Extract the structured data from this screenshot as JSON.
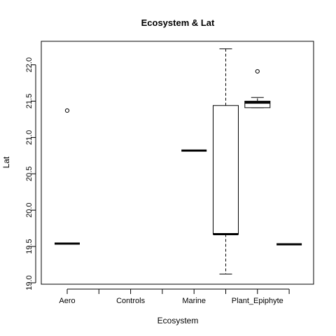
{
  "chart_data": {
    "type": "box",
    "title": "Ecosystem & Lat",
    "xlabel": "Ecosystem",
    "ylabel": "Lat",
    "ylim": [
      19.0,
      22.25
    ],
    "yticks": [
      19.0,
      19.5,
      20.0,
      20.5,
      21.0,
      21.5,
      22.0
    ],
    "ytick_labels": [
      "19.0",
      "19.5",
      "20.0",
      "20.5",
      "21.0",
      "21.5",
      "22.0"
    ],
    "categories": [
      "Aero",
      "",
      "Controls",
      "",
      "Marine",
      "",
      "Plant_Epiphyte",
      ""
    ],
    "xtick_labels": [
      "Aero",
      "Controls",
      "Marine",
      "Plant_Epiphyte"
    ],
    "xtick_label_positions": [
      1,
      3,
      5,
      7
    ],
    "boxes": [
      {
        "position": 1,
        "min": 19.54,
        "q1": 19.54,
        "median": 19.54,
        "q3": 19.54,
        "max": 19.54,
        "outliers": [
          21.37
        ]
      },
      {
        "position": 5,
        "min": 20.82,
        "q1": 20.82,
        "median": 20.82,
        "q3": 20.82,
        "max": 20.82,
        "outliers": []
      },
      {
        "position": 6,
        "min": 19.12,
        "q1": 19.67,
        "median": 19.67,
        "q3": 21.44,
        "max": 22.22,
        "outliers": []
      },
      {
        "position": 7,
        "min": 21.41,
        "q1": 21.41,
        "median": 21.48,
        "q3": 21.5,
        "max": 21.55,
        "outliers": [
          21.91
        ]
      },
      {
        "position": 8,
        "min": 19.53,
        "q1": 19.53,
        "median": 19.53,
        "q3": 19.53,
        "max": 19.53,
        "outliers": []
      }
    ],
    "grid": false,
    "legend": "none"
  }
}
